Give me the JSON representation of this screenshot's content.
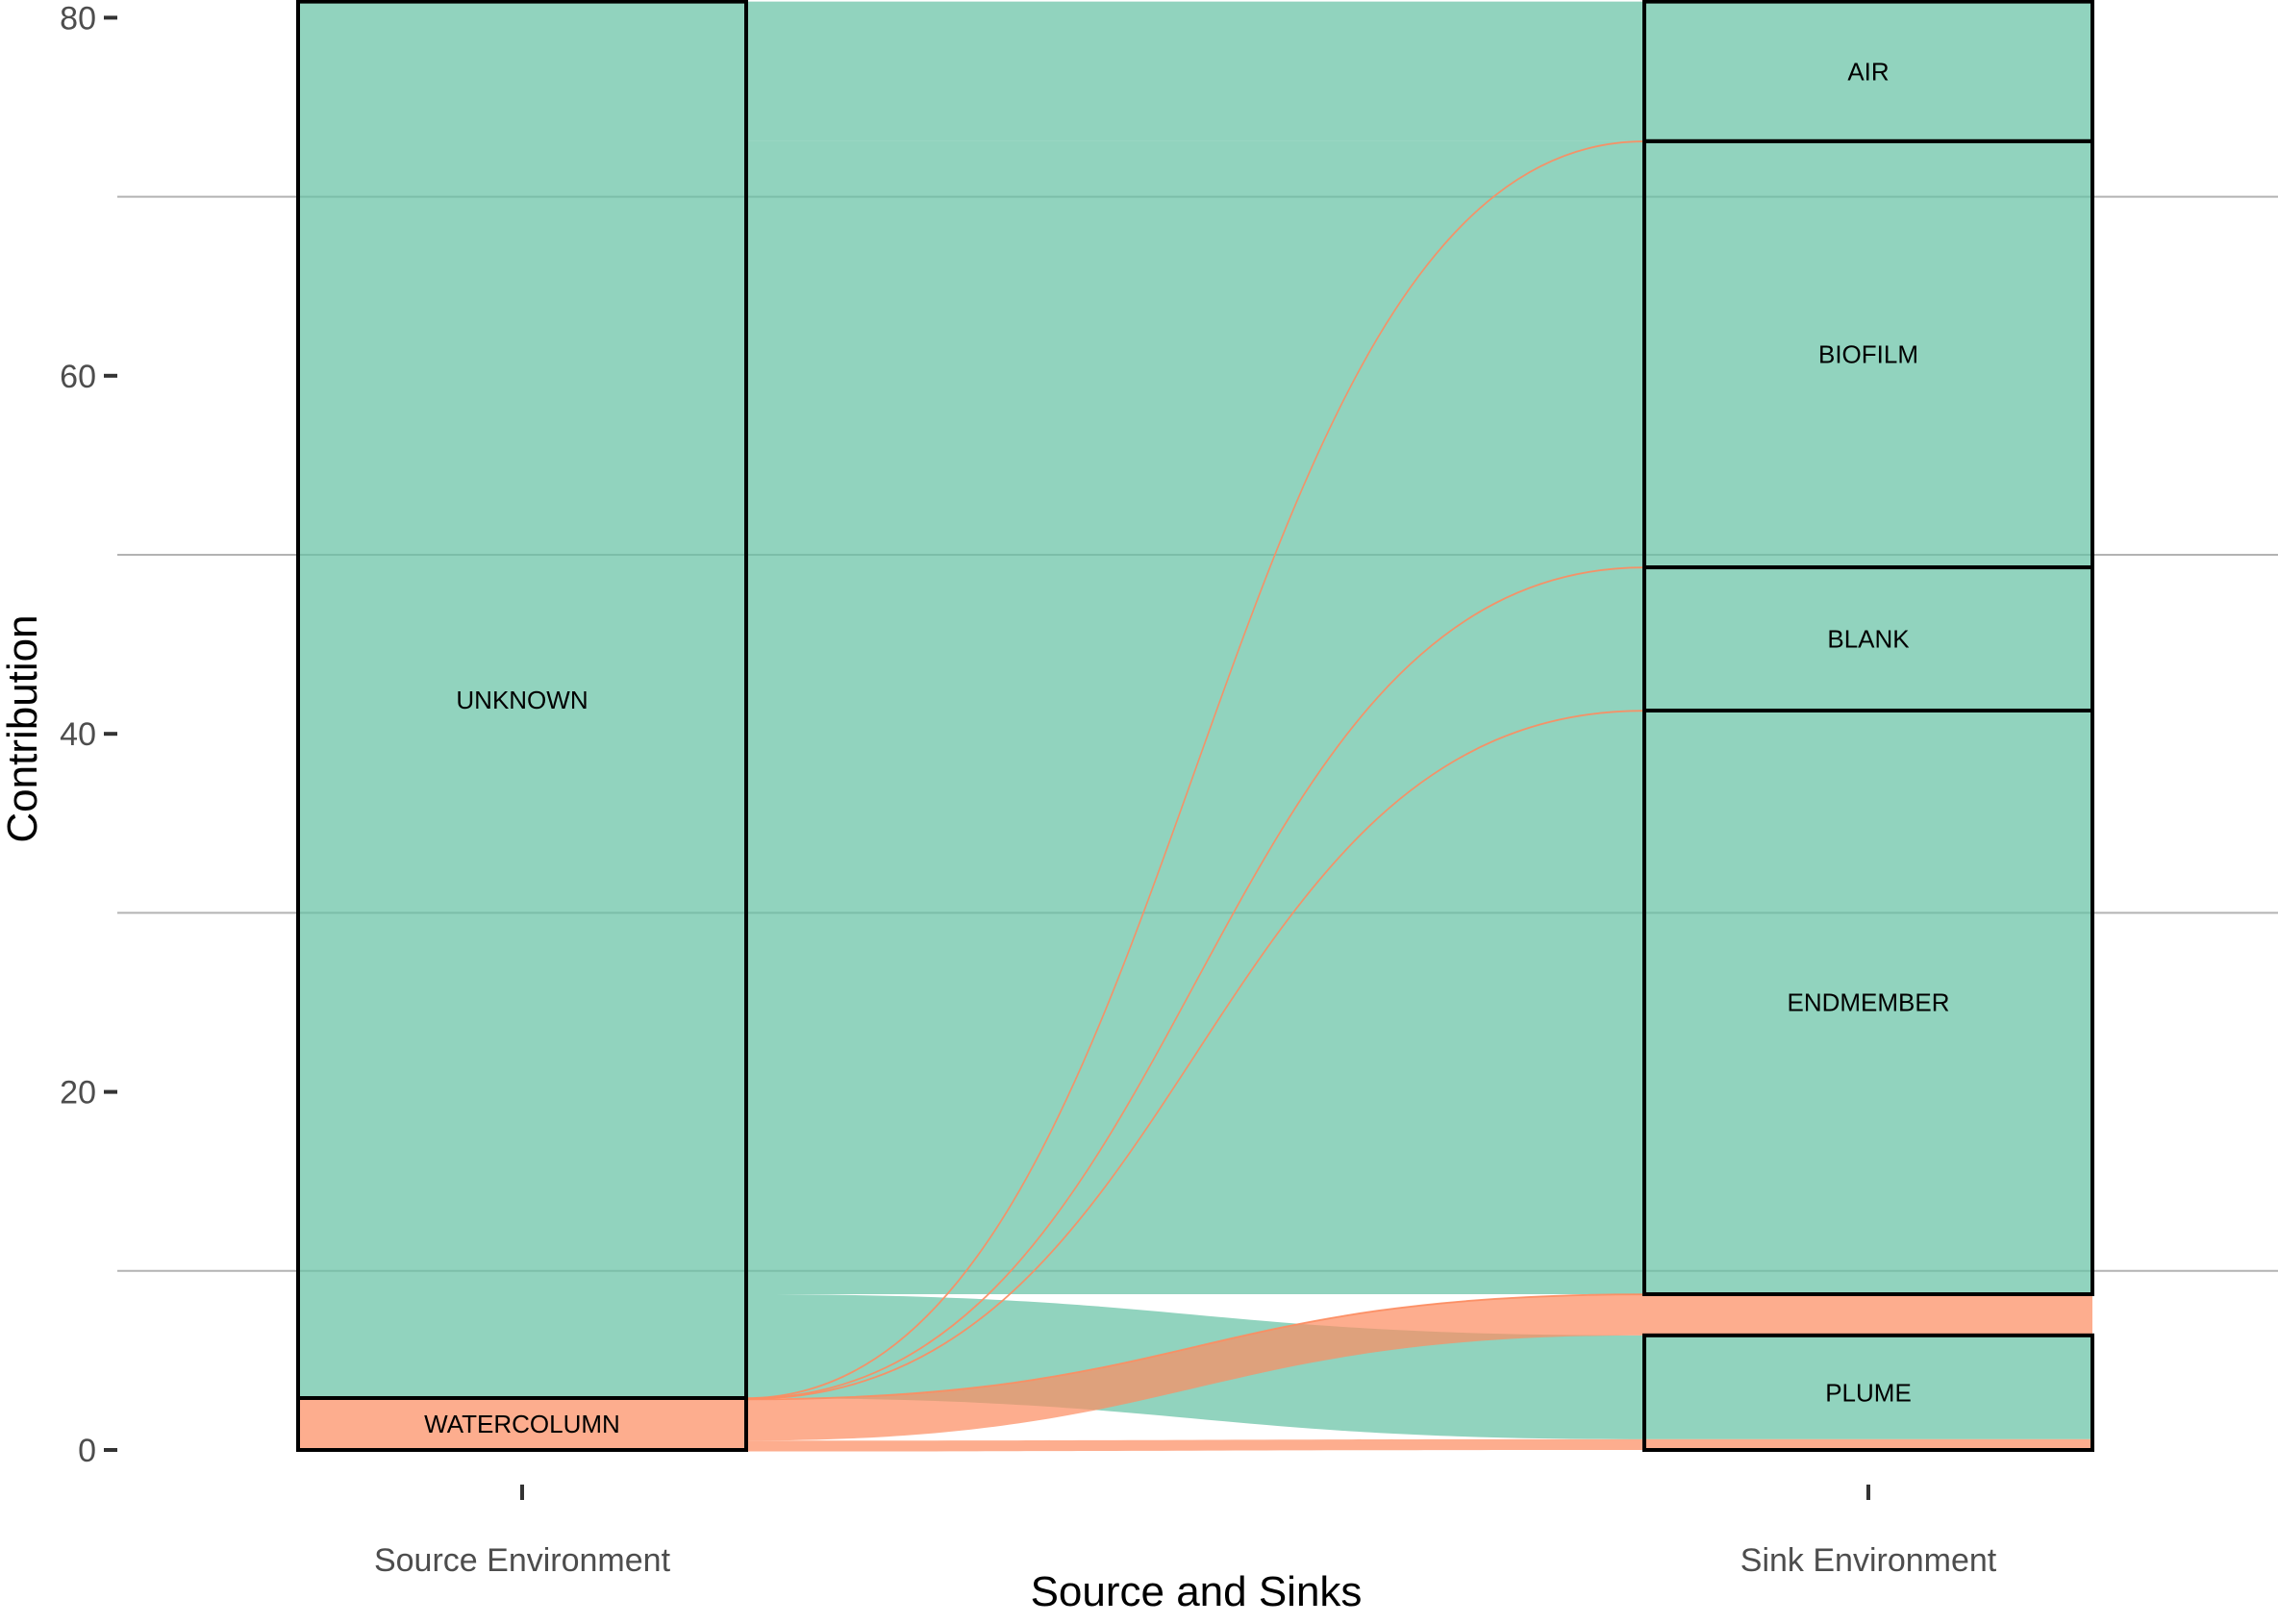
{
  "chart_data": {
    "type": "alluvial",
    "xlabel": "Source and Sinks",
    "ylabel": "Contribution",
    "ylim": [
      0,
      81
    ],
    "yticks": [
      0,
      20,
      40,
      60,
      80
    ],
    "grid": true,
    "axes": [
      "Source Environment",
      "Sink Environment"
    ],
    "colors": {
      "unknown": "#66c2a5",
      "watercolumn": "#fc8d62"
    },
    "source_strata": [
      {
        "label": "UNKNOWN",
        "value": 78.0,
        "color_key": "unknown"
      },
      {
        "label": "WATERCOLUMN",
        "value": 2.9,
        "color_key": "watercolumn"
      }
    ],
    "sink_strata": [
      {
        "label": "AIR",
        "value": 7.8
      },
      {
        "label": "BIOFILM",
        "value": 23.8
      },
      {
        "label": "BLANK",
        "value": 8.0
      },
      {
        "label": "ENDMEMBER",
        "value": 32.6
      },
      {
        "label": "",
        "value": 2.3
      },
      {
        "label": "PLUME",
        "value": 6.4
      }
    ],
    "flows": [
      {
        "source": "UNKNOWN",
        "sink": "AIR",
        "value": 7.8
      },
      {
        "source": "UNKNOWN",
        "sink": "BIOFILM",
        "value": 23.8
      },
      {
        "source": "UNKNOWN",
        "sink": "BLANK",
        "value": 8.0
      },
      {
        "source": "UNKNOWN",
        "sink": "ENDMEMBER",
        "value": 32.6
      },
      {
        "source": "UNKNOWN",
        "sink": "PLUME",
        "value": 5.8
      },
      {
        "source": "WATERCOLUMN",
        "sink": "AIR",
        "value": 0.02
      },
      {
        "source": "WATERCOLUMN",
        "sink": "BIOFILM",
        "value": 0.02
      },
      {
        "source": "WATERCOLUMN",
        "sink": "BLANK",
        "value": 0.02
      },
      {
        "source": "WATERCOLUMN",
        "sink": "ENDMEMBER",
        "value": 0.02
      },
      {
        "source": "WATERCOLUMN",
        "sink": "",
        "value": 2.3
      },
      {
        "source": "WATERCOLUMN",
        "sink": "PLUME",
        "value": 0.6
      }
    ]
  }
}
